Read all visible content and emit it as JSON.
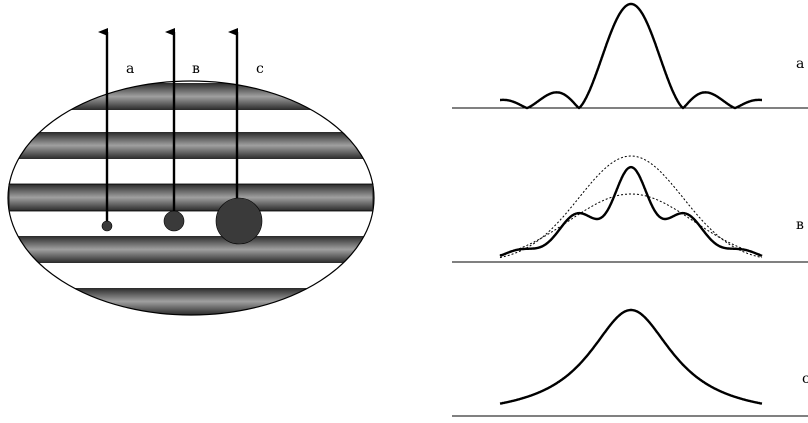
{
  "colors": {
    "ink": "#000000",
    "stripe_dark": "#2a2a2a",
    "stripe_light": "#9a9a9a",
    "background": "#ffffff",
    "dot": "#3a3a3a"
  },
  "left_panel": {
    "labels": {
      "a": "a",
      "b": "в",
      "c": "c"
    },
    "probe_sizes": [
      "small",
      "medium",
      "large"
    ]
  },
  "right_panel": {
    "labels": {
      "a": "a",
      "b": "в",
      "c": "c"
    }
  }
}
